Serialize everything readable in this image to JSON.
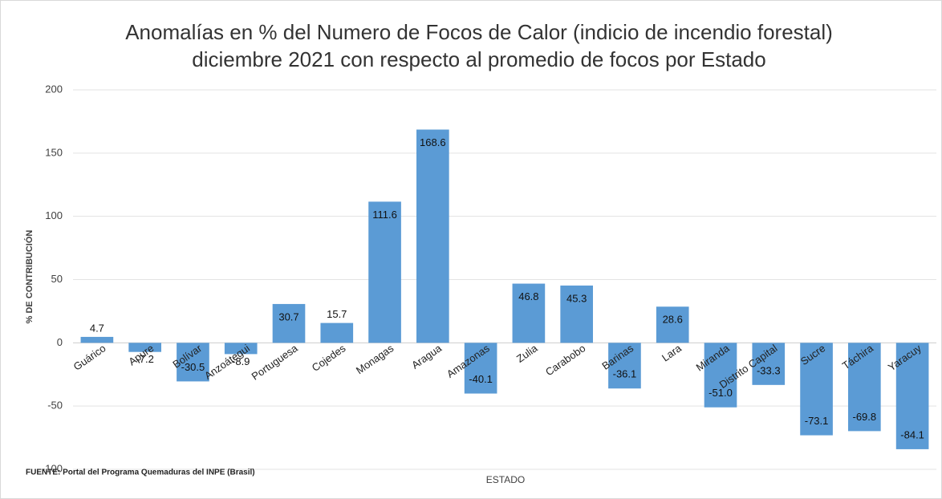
{
  "chart_data": {
    "type": "bar",
    "title": "Anomalías en % del Numero de Focos de Calor (indicio de incendio forestal)",
    "subtitle": "diciembre  2021 con respecto al promedio de focos por Estado",
    "x_label": "ESTADO",
    "y_label": "% DE CONTRIBUCIÓN",
    "source": "FUENTE:  Portal del Programa Quemaduras del INPE (Brasil)",
    "categories": [
      "Guárico",
      "Apure",
      "Bolívar",
      "Anzoátegui",
      "Portuguesa",
      "Cojedes",
      "Monagas",
      "Aragua",
      "Amazonas",
      "Zulia",
      "Carabobo",
      "Barinas",
      "Lara",
      "Miranda",
      "Distrito Capital",
      "Sucre",
      "Táchira",
      "Yaracuy"
    ],
    "values": [
      4.7,
      -7.2,
      -30.5,
      -8.9,
      30.7,
      15.7,
      111.6,
      168.6,
      -40.1,
      46.8,
      45.3,
      -36.1,
      28.6,
      -51.0,
      -33.3,
      -73.1,
      -69.8,
      -84.1
    ],
    "value_labels": [
      "4.7",
      "-7.2",
      "-30.5",
      "-8.9",
      "30.7",
      "15.7",
      "111.6",
      "168.6",
      "-40.1",
      "46.8",
      "45.3",
      "-36.1",
      "28.6",
      "-51.0",
      "-33.3",
      "-73.1",
      "-69.8",
      "-84.1"
    ],
    "color": "#5b9bd5",
    "ylim": [
      -100,
      200
    ],
    "yticks": [
      -100,
      -50,
      0,
      50,
      100,
      150,
      200
    ],
    "grid": true
  }
}
